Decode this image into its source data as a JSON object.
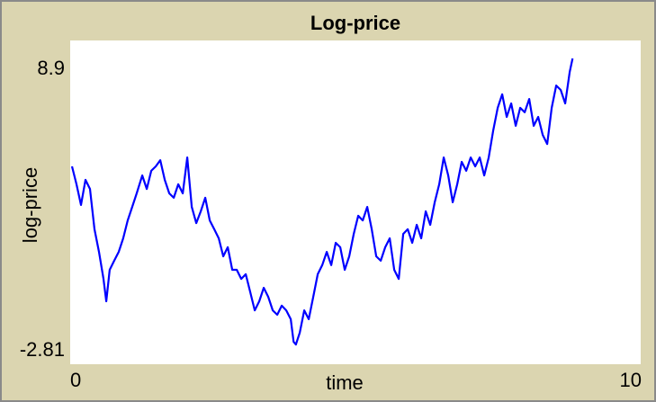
{
  "chart_data": {
    "type": "line",
    "title": "Log-price",
    "x_label": "time",
    "y_label": "log-price",
    "xlim": [
      0,
      10
    ],
    "xticks": [
      0,
      10
    ],
    "ylim": [
      -2.81,
      8.9
    ],
    "yticks": [
      -2.81,
      8.9
    ],
    "grid": false,
    "x": [
      0,
      0.08,
      0.16,
      0.24,
      0.32,
      0.4,
      0.48,
      0.56,
      0.61,
      0.67,
      0.75,
      0.83,
      0.91,
      0.99,
      1.07,
      1.15,
      1.25,
      1.33,
      1.41,
      1.49,
      1.57,
      1.65,
      1.73,
      1.81,
      1.89,
      1.97,
      2.05,
      2.13,
      2.21,
      2.29,
      2.37,
      2.45,
      2.53,
      2.61,
      2.69,
      2.77,
      2.85,
      2.93,
      3.01,
      3.09,
      3.17,
      3.25,
      3.33,
      3.41,
      3.49,
      3.57,
      3.65,
      3.73,
      3.81,
      3.89,
      3.94,
      3.98,
      4.05,
      4.13,
      4.21,
      4.29,
      4.37,
      4.45,
      4.53,
      4.61,
      4.69,
      4.77,
      4.85,
      4.93,
      5.01,
      5.09,
      5.17,
      5.25,
      5.33,
      5.41,
      5.49,
      5.57,
      5.65,
      5.73,
      5.81,
      5.89,
      5.97,
      6.05,
      6.13,
      6.21,
      6.29,
      6.37,
      6.45,
      6.53,
      6.61,
      6.69,
      6.77,
      6.85,
      6.93,
      7.01,
      7.09,
      7.17,
      7.25,
      7.33,
      7.41,
      7.49,
      7.57,
      7.65,
      7.73,
      7.81,
      7.89,
      7.97,
      8.05,
      8.13,
      8.21,
      8.29,
      8.37,
      8.45,
      8.53,
      8.61,
      8.69,
      8.77,
      8.85,
      8.9
    ],
    "series": [
      {
        "name": "log-price",
        "color": "#0000ff",
        "values": [
          4.51,
          3.78,
          2.94,
          3.96,
          3.59,
          1.95,
          1.03,
          -0.07,
          -0.98,
          0.3,
          0.67,
          1.03,
          1.58,
          2.31,
          2.86,
          3.41,
          4.14,
          3.59,
          4.33,
          4.51,
          4.76,
          3.96,
          3.41,
          3.23,
          3.78,
          3.41,
          4.87,
          2.86,
          2.2,
          2.68,
          3.23,
          2.31,
          1.95,
          1.58,
          0.85,
          1.22,
          0.3,
          0.3,
          -0.07,
          0.12,
          -0.61,
          -1.35,
          -0.98,
          -0.43,
          -0.8,
          -1.35,
          -1.53,
          -1.16,
          -1.35,
          -1.71,
          -2.63,
          -2.74,
          -2.26,
          -1.35,
          -1.71,
          -0.8,
          0.12,
          0.49,
          1.03,
          0.49,
          1.4,
          1.22,
          0.3,
          0.85,
          1.76,
          2.5,
          2.31,
          2.86,
          1.95,
          0.85,
          0.67,
          1.22,
          1.58,
          0.3,
          -0.07,
          1.76,
          1.95,
          1.4,
          2.13,
          1.58,
          2.68,
          2.13,
          3.05,
          3.78,
          4.87,
          4.14,
          3.05,
          3.78,
          4.69,
          4.33,
          4.87,
          4.51,
          4.87,
          4.14,
          4.87,
          5.97,
          6.89,
          7.44,
          6.52,
          7.07,
          6.16,
          6.89,
          6.71,
          7.25,
          6.16,
          6.52,
          5.79,
          5.42,
          6.89,
          7.8,
          7.62,
          7.07,
          8.35,
          8.9
        ]
      }
    ]
  }
}
